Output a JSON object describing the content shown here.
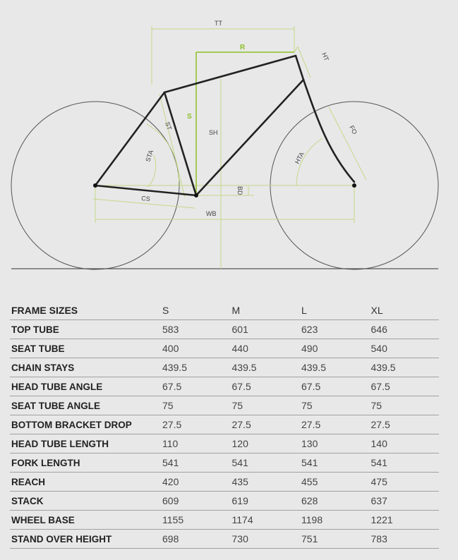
{
  "diagram": {
    "labels": {
      "tt": "TT",
      "r": "R",
      "ht": "HT",
      "s": "S",
      "st": "ST",
      "sh": "SH",
      "sta": "STA",
      "fo": "FO",
      "hta": "HTA",
      "bd": "BD",
      "cs": "CS",
      "wb": "WB"
    },
    "colors": {
      "frame": "#222222",
      "accent": "#8cbf26",
      "dimension": "#c5d88a",
      "wheel": "#555555",
      "background": "#e8e8e8"
    }
  },
  "table": {
    "header": {
      "label": "FRAME SIZES",
      "sizes": [
        "S",
        "M",
        "L",
        "XL"
      ]
    },
    "rows": [
      {
        "label": "TOP TUBE",
        "values": [
          "583",
          "601",
          "623",
          "646"
        ]
      },
      {
        "label": "SEAT TUBE",
        "values": [
          "400",
          "440",
          "490",
          "540"
        ]
      },
      {
        "label": "CHAIN STAYS",
        "values": [
          "439.5",
          "439.5",
          "439.5",
          "439.5"
        ]
      },
      {
        "label": "HEAD TUBE ANGLE",
        "values": [
          "67.5",
          "67.5",
          "67.5",
          "67.5"
        ]
      },
      {
        "label": "SEAT TUBE ANGLE",
        "values": [
          "75",
          "75",
          "75",
          "75"
        ]
      },
      {
        "label": "BOTTOM BRACKET DROP",
        "values": [
          "27.5",
          "27.5",
          "27.5",
          "27.5"
        ]
      },
      {
        "label": "HEAD TUBE LENGTH",
        "values": [
          "110",
          "120",
          "130",
          "140"
        ]
      },
      {
        "label": "FORK LENGTH",
        "values": [
          "541",
          "541",
          "541",
          "541"
        ]
      },
      {
        "label": "REACH",
        "values": [
          "420",
          "435",
          "455",
          "475"
        ]
      },
      {
        "label": "STACK",
        "values": [
          "609",
          "619",
          "628",
          "637"
        ]
      },
      {
        "label": "WHEEL BASE",
        "values": [
          "1155",
          "1174",
          "1198",
          "1221"
        ]
      },
      {
        "label": "STAND OVER HEIGHT",
        "values": [
          "698",
          "730",
          "751",
          "783"
        ]
      }
    ]
  }
}
